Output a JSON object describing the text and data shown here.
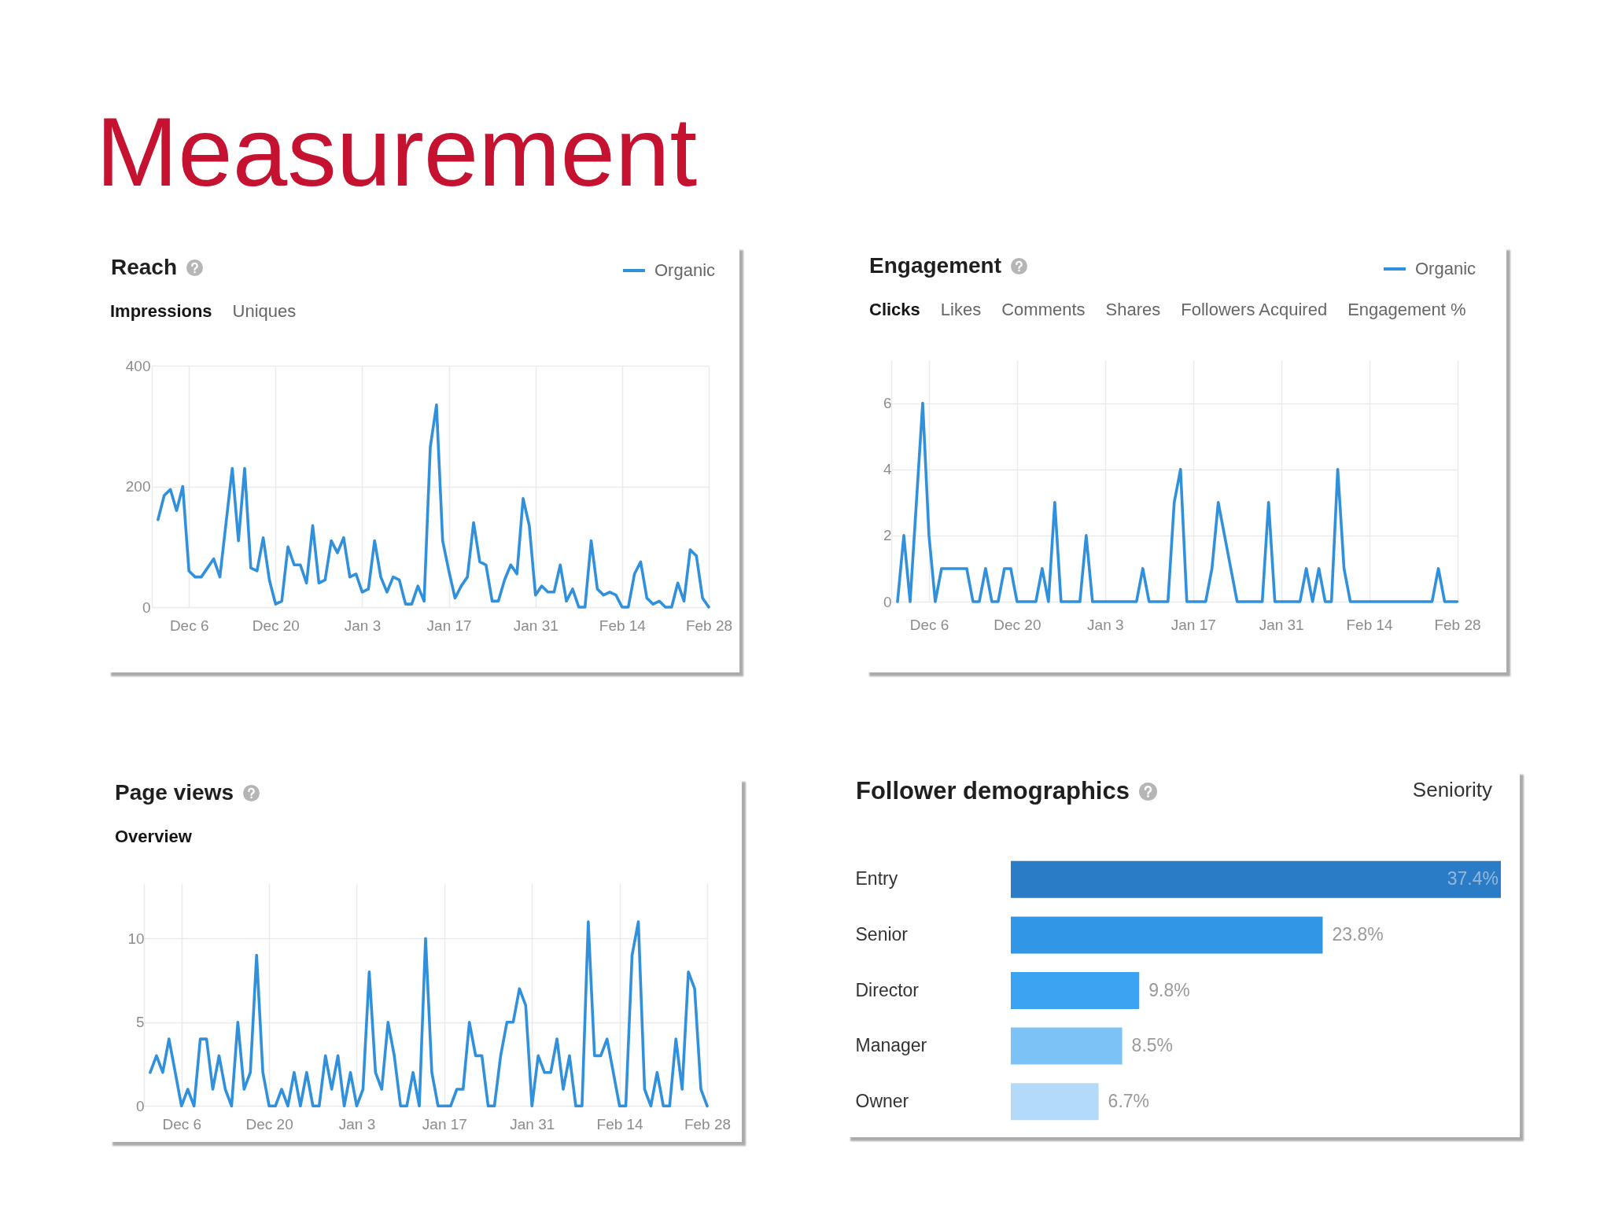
{
  "chart_data": [
    {
      "type": "other",
      "title": "Measurement"
    },
    {
      "type": "line",
      "title": "Reach",
      "annotations": [
        "Impressions",
        "Uniques"
      ],
      "legend": "top right",
      "grid": true,
      "categories": [
        null,
        null,
        null,
        null,
        null,
        "Dec 6",
        null,
        null,
        null,
        null,
        null,
        null,
        null,
        null,
        null,
        null,
        null,
        null,
        null,
        "Dec 20",
        null,
        null,
        null,
        null,
        null,
        null,
        null,
        null,
        null,
        null,
        null,
        null,
        null,
        "Jan 3",
        null,
        null,
        null,
        null,
        null,
        null,
        null,
        null,
        null,
        null,
        null,
        null,
        null,
        "Jan 17",
        null,
        null,
        null,
        null,
        null,
        null,
        null,
        null,
        null,
        null,
        null,
        null,
        null,
        "Jan 31",
        null,
        null,
        null,
        null,
        null,
        null,
        null,
        null,
        null,
        null,
        null,
        null,
        null,
        "Feb 14",
        null,
        null,
        null,
        null,
        null,
        null,
        null,
        null,
        null,
        null,
        null,
        null,
        null,
        "Feb 28"
      ],
      "ylim": [
        0,
        400
      ],
      "yticks": [
        0,
        200,
        400
      ],
      "series": [
        {
          "name": "Organic",
          "color": "#3190dc",
          "values": [
            145,
            185,
            195,
            160,
            200,
            60,
            50,
            50,
            65,
            80,
            50,
            140,
            230,
            110,
            230,
            65,
            60,
            115,
            45,
            5,
            10,
            100,
            70,
            70,
            40,
            135,
            40,
            45,
            110,
            90,
            115,
            50,
            55,
            25,
            30,
            110,
            50,
            25,
            50,
            45,
            5,
            5,
            35,
            10,
            265,
            335,
            110,
            60,
            15,
            35,
            50,
            140,
            75,
            70,
            10,
            10,
            45,
            70,
            55,
            180,
            135,
            20,
            35,
            25,
            25,
            70,
            10,
            30,
            0,
            0,
            110,
            30,
            20,
            25,
            20,
            0,
            0,
            55,
            75,
            15,
            5,
            10,
            0,
            0,
            40,
            10,
            95,
            85,
            15,
            0
          ]
        }
      ]
    },
    {
      "type": "line",
      "title": "Engagement",
      "annotations": [
        "Clicks",
        "Likes",
        "Comments",
        "Shares",
        "Followers Acquired",
        "Engagement %"
      ],
      "legend": "top right",
      "grid": true,
      "categories": [
        null,
        null,
        null,
        null,
        null,
        "Dec 6",
        null,
        null,
        null,
        null,
        null,
        null,
        null,
        null,
        null,
        null,
        null,
        null,
        null,
        "Dec 20",
        null,
        null,
        null,
        null,
        null,
        null,
        null,
        null,
        null,
        null,
        null,
        null,
        null,
        "Jan 3",
        null,
        null,
        null,
        null,
        null,
        null,
        null,
        null,
        null,
        null,
        null,
        null,
        null,
        "Jan 17",
        null,
        null,
        null,
        null,
        null,
        null,
        null,
        null,
        null,
        null,
        null,
        null,
        null,
        "Jan 31",
        null,
        null,
        null,
        null,
        null,
        null,
        null,
        null,
        null,
        null,
        null,
        null,
        null,
        "Feb 14",
        null,
        null,
        null,
        null,
        null,
        null,
        null,
        null,
        null,
        null,
        null,
        null,
        null,
        "Feb 28"
      ],
      "ylim": [
        0,
        7.3
      ],
      "yticks": [
        0,
        2,
        4,
        6
      ],
      "series": [
        {
          "name": "Organic",
          "color": "#3190dc",
          "values": [
            0,
            2,
            0,
            3,
            6,
            2,
            0,
            1,
            1,
            1,
            1,
            1,
            0,
            0,
            1,
            0,
            0,
            1,
            1,
            0,
            0,
            0,
            0,
            1,
            0,
            3,
            0,
            0,
            0,
            0,
            2,
            0,
            0,
            0,
            0,
            0,
            0,
            0,
            0,
            1,
            0,
            0,
            0,
            0,
            3,
            4,
            0,
            0,
            0,
            0,
            1,
            3,
            2,
            1,
            0,
            0,
            0,
            0,
            0,
            3,
            0,
            0,
            0,
            0,
            0,
            1,
            0,
            1,
            0,
            0,
            4,
            1,
            0,
            0,
            0,
            0,
            0,
            0,
            0,
            0,
            0,
            0,
            0,
            0,
            0,
            0,
            1,
            0,
            0,
            0
          ]
        }
      ]
    },
    {
      "type": "line",
      "title": "Page views",
      "annotations": [
        "Overview"
      ],
      "grid": true,
      "categories": [
        null,
        null,
        null,
        null,
        null,
        "Dec 6",
        null,
        null,
        null,
        null,
        null,
        null,
        null,
        null,
        null,
        null,
        null,
        null,
        null,
        "Dec 20",
        null,
        null,
        null,
        null,
        null,
        null,
        null,
        null,
        null,
        null,
        null,
        null,
        null,
        "Jan 3",
        null,
        null,
        null,
        null,
        null,
        null,
        null,
        null,
        null,
        null,
        null,
        null,
        null,
        "Jan 17",
        null,
        null,
        null,
        null,
        null,
        null,
        null,
        null,
        null,
        null,
        null,
        null,
        null,
        "Jan 31",
        null,
        null,
        null,
        null,
        null,
        null,
        null,
        null,
        null,
        null,
        null,
        null,
        null,
        "Feb 14",
        null,
        null,
        null,
        null,
        null,
        null,
        null,
        null,
        null,
        null,
        null,
        null,
        null,
        "Feb 28"
      ],
      "ylim": [
        0,
        13.3
      ],
      "yticks": [
        0,
        5,
        10
      ],
      "series": [
        {
          "color": "#3190dc",
          "values": [
            2,
            3,
            2,
            4,
            2,
            0,
            1,
            0,
            4,
            4,
            1,
            3,
            1,
            0,
            5,
            1,
            2,
            9,
            2,
            0,
            0,
            1,
            0,
            2,
            0,
            2,
            0,
            0,
            3,
            1,
            3,
            0,
            2,
            0,
            1,
            8,
            2,
            1,
            5,
            3,
            0,
            0,
            2,
            0,
            10,
            2,
            0,
            0,
            0,
            1,
            1,
            5,
            3,
            3,
            0,
            0,
            3,
            5,
            5,
            7,
            6,
            0,
            3,
            2,
            2,
            4,
            1,
            3,
            0,
            0,
            11,
            3,
            3,
            4,
            2,
            0,
            0,
            9,
            11,
            1,
            0,
            2,
            0,
            0,
            4,
            1,
            8,
            7,
            1,
            0
          ]
        }
      ]
    },
    {
      "type": "bar",
      "title": "Follower demographics",
      "subtitle": "Seniority",
      "orientation": "horizontal",
      "tick_labels": "y",
      "categories": [
        "Entry",
        "Senior",
        "Director",
        "Manager",
        "Owner"
      ],
      "values": [
        37.4,
        23.8,
        9.8,
        8.5,
        6.7
      ],
      "colors": [
        "#2b7cc6",
        "#3196e6",
        "#3aa3f2",
        "#7cc2f6",
        "#b3dbf9"
      ],
      "value_labels": [
        "37.4%",
        "23.8%",
        "9.8%",
        "8.5%",
        "6.7%"
      ]
    }
  ]
}
